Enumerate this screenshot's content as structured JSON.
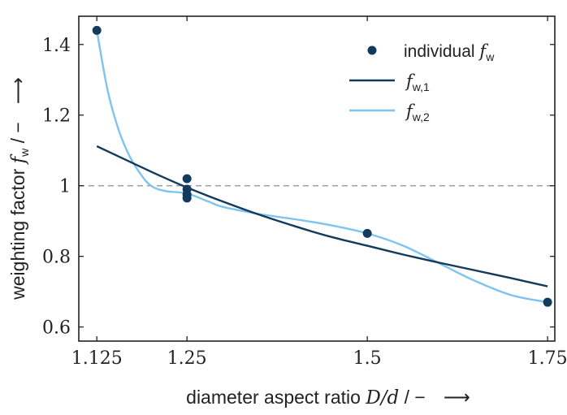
{
  "colors": {
    "dark": "#123a5c",
    "light": "#7ec4ee",
    "ref": "#9a9a9a",
    "frame": "#222222"
  },
  "chart_data": {
    "type": "scatter",
    "xlabel": "diameter aspect ratio D/d / −  ⟶",
    "xlabel_text": "diameter aspect ratio ",
    "xlabel_math": "D/d",
    "xlabel_tail": " / −",
    "xlabel_arrow": "⟶",
    "ylabel": "weighting factor f_w / −  ⟶",
    "ylabel_text": "weighting factor ",
    "ylabel_math": "f",
    "ylabel_sub": "w",
    "ylabel_tail": " / −",
    "ylabel_arrow": "⟶",
    "xlim": [
      1.1,
      1.76
    ],
    "ylim": [
      0.56,
      1.48
    ],
    "x_ticks": [
      1.125,
      1.25,
      1.5,
      1.75
    ],
    "x_tick_labels": [
      "1.125",
      "1.25",
      "1.5",
      "1.75"
    ],
    "y_ticks": [
      0.6,
      0.8,
      1.0,
      1.2,
      1.4
    ],
    "y_tick_labels": [
      "0.6",
      "0.8",
      "1",
      "1.2",
      "1.4"
    ],
    "reference_line": {
      "y": 1.0,
      "style": "dashed"
    },
    "legend_position": "top-right",
    "series": [
      {
        "name": "individual f_w",
        "legend_text": "individual ",
        "legend_math": "f",
        "legend_sub": "w",
        "kind": "markers",
        "color": "#123a5c",
        "x": [
          1.125,
          1.25,
          1.25,
          1.25,
          1.25,
          1.5,
          1.75
        ],
        "y": [
          1.44,
          1.02,
          0.99,
          0.975,
          0.965,
          0.865,
          0.67
        ]
      },
      {
        "name": "f_w,1",
        "legend_text": "",
        "legend_math": "f",
        "legend_sub": "w,1",
        "kind": "line",
        "color": "#123a5c",
        "x": [
          1.125,
          1.2,
          1.25,
          1.3,
          1.35,
          1.4,
          1.45,
          1.5,
          1.55,
          1.6,
          1.65,
          1.7,
          1.75
        ],
        "y": [
          1.112,
          1.04,
          0.995,
          0.955,
          0.918,
          0.885,
          0.855,
          0.83,
          0.805,
          0.782,
          0.76,
          0.738,
          0.715
        ]
      },
      {
        "name": "f_w,2",
        "legend_text": "",
        "legend_math": "f",
        "legend_sub": "w,2",
        "kind": "line",
        "color": "#7ec4ee",
        "x": [
          1.125,
          1.14,
          1.155,
          1.17,
          1.185,
          1.2,
          1.22,
          1.25,
          1.28,
          1.3,
          1.35,
          1.4,
          1.45,
          1.5,
          1.55,
          1.6,
          1.65,
          1.7,
          1.75
        ],
        "y": [
          1.44,
          1.27,
          1.16,
          1.085,
          1.035,
          1.0,
          0.985,
          0.978,
          0.955,
          0.94,
          0.92,
          0.905,
          0.888,
          0.865,
          0.83,
          0.78,
          0.73,
          0.69,
          0.67
        ]
      }
    ]
  }
}
